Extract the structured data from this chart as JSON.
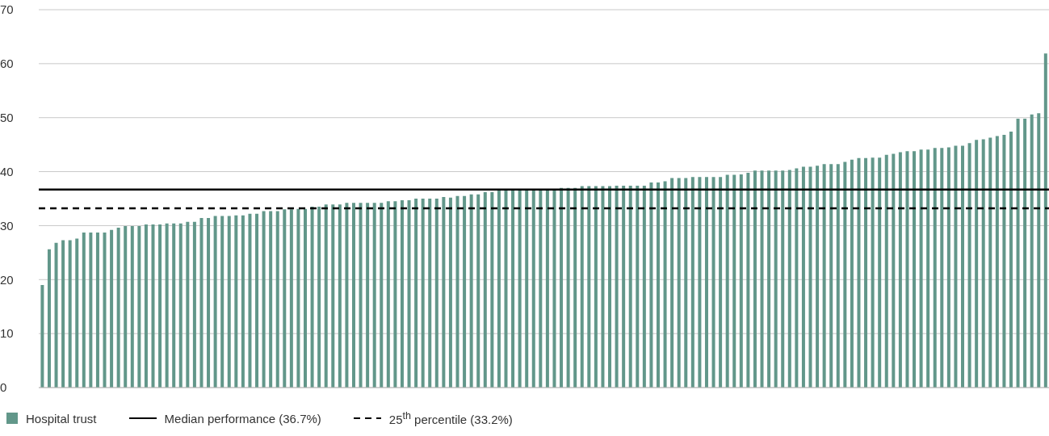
{
  "chart_data": {
    "type": "bar",
    "categories": [
      null,
      null,
      null,
      null,
      null,
      null,
      null,
      null,
      null,
      null,
      null,
      null,
      null,
      null,
      null,
      null,
      null,
      null,
      null,
      null,
      null,
      null,
      null,
      null,
      null,
      null,
      null,
      null,
      null,
      null,
      null,
      null,
      null,
      null,
      null,
      null,
      null,
      null,
      null,
      null,
      null,
      null,
      null,
      null,
      null,
      null,
      null,
      null,
      null,
      null,
      null,
      null,
      null,
      null,
      null,
      null,
      null,
      null,
      null,
      null,
      null,
      null,
      null,
      null,
      null,
      null,
      null,
      null,
      null,
      null,
      null,
      null,
      null,
      null,
      null,
      null,
      null,
      null,
      null,
      null,
      null,
      null,
      null,
      null,
      null,
      null,
      null,
      null,
      null,
      null,
      null,
      null,
      null,
      null,
      null,
      null,
      null,
      null,
      null,
      null,
      null,
      null,
      null,
      null,
      null,
      null,
      null,
      null,
      null,
      null,
      null,
      null,
      null,
      null,
      null,
      null,
      null,
      null,
      null,
      null,
      null,
      null,
      null,
      null,
      null,
      null,
      null,
      null,
      null,
      null,
      null,
      null,
      null,
      null,
      null,
      null,
      null,
      null,
      null,
      null,
      null,
      null,
      null,
      null,
      null,
      null
    ],
    "series": [
      {
        "name": "Hospital trust",
        "color": "#62978a",
        "values": [
          19.0,
          25.6,
          26.8,
          27.3,
          27.3,
          27.6,
          28.7,
          28.7,
          28.7,
          28.7,
          29.2,
          29.6,
          29.9,
          29.9,
          29.9,
          30.2,
          30.2,
          30.2,
          30.4,
          30.4,
          30.4,
          30.7,
          30.7,
          31.4,
          31.4,
          31.8,
          31.8,
          31.8,
          31.9,
          31.9,
          32.2,
          32.2,
          32.7,
          32.7,
          32.7,
          33.0,
          33.0,
          33.1,
          33.1,
          33.5,
          33.5,
          33.9,
          33.9,
          33.9,
          34.2,
          34.2,
          34.2,
          34.2,
          34.2,
          34.2,
          34.5,
          34.5,
          34.7,
          34.7,
          35.0,
          35.0,
          35.0,
          35.0,
          35.3,
          35.2,
          35.5,
          35.5,
          35.8,
          35.8,
          36.2,
          36.2,
          36.7,
          36.7,
          36.7,
          36.7,
          36.7,
          36.7,
          36.7,
          36.7,
          36.7,
          37.0,
          37.0,
          37.0,
          37.3,
          37.3,
          37.3,
          37.3,
          37.3,
          37.4,
          37.4,
          37.4,
          37.4,
          37.4,
          38.0,
          38.0,
          38.2,
          38.8,
          38.8,
          38.8,
          39.0,
          39.0,
          39.0,
          39.0,
          39.0,
          39.4,
          39.4,
          39.5,
          39.8,
          40.2,
          40.2,
          40.2,
          40.2,
          40.2,
          40.3,
          40.6,
          40.9,
          40.9,
          41.1,
          41.4,
          41.4,
          41.4,
          41.8,
          42.2,
          42.5,
          42.5,
          42.6,
          42.6,
          43.1,
          43.3,
          43.6,
          43.8,
          43.8,
          44.1,
          44.1,
          44.4,
          44.4,
          44.5,
          44.8,
          44.8,
          45.3,
          45.9,
          46.0,
          46.3,
          46.6,
          46.8,
          47.4,
          49.8,
          49.8,
          50.6,
          50.8,
          61.9
        ]
      }
    ],
    "ylim": [
      0,
      70
    ],
    "yticks": [
      0,
      10,
      20,
      30,
      40,
      50,
      60,
      70
    ],
    "grid": "y",
    "legend": "bottom left",
    "ref_lines": [
      {
        "axis": "y",
        "value": 36.7,
        "label": "Median performance (36.7%)",
        "color": "#000000",
        "line_style": "solid"
      },
      {
        "axis": "y",
        "value": 33.2,
        "label": "25$^{th}$ percentile (33.2%)",
        "color": "#000000",
        "line_style": "dashed"
      }
    ]
  }
}
